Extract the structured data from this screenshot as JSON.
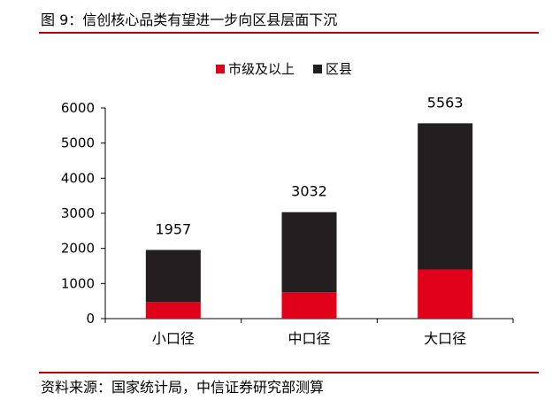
{
  "header": {
    "title": "图 9：信创核心品类有望进一步向区县层面下沉"
  },
  "footer": {
    "source": "资料来源：国家统计局，中信证券研究部测算"
  },
  "colors": {
    "rule": "#c00000",
    "city": "#e0001a",
    "county": "#231f20"
  },
  "chart_data": {
    "type": "bar",
    "stacked": true,
    "title": "",
    "xlabel": "",
    "ylabel": "",
    "categories": [
      "小口径",
      "中口径",
      "大口径"
    ],
    "series": [
      {
        "name": "市级及以上",
        "color": "#e0001a",
        "values": [
          470,
          750,
          1400
        ]
      },
      {
        "name": "区县",
        "color": "#231f20",
        "values": [
          1487,
          2282,
          4163
        ]
      }
    ],
    "totals": [
      1957,
      3032,
      5563
    ],
    "ylim": [
      0,
      6000
    ],
    "yticks": [
      0,
      1000,
      2000,
      3000,
      4000,
      5000,
      6000
    ],
    "grid": false,
    "legend": "top-center"
  }
}
